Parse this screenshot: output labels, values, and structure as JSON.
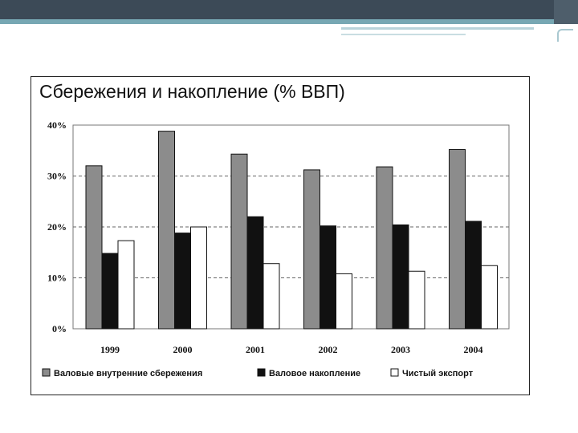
{
  "chart_data": {
    "type": "bar",
    "title": "Сбережения и накопление (% ВВП)",
    "categories": [
      "1999",
      "2000",
      "2001",
      "2002",
      "2003",
      "2004"
    ],
    "ylim": [
      0,
      40
    ],
    "yticks": [
      "0%",
      "10%",
      "20%",
      "30%",
      "40%"
    ],
    "grid": "horizontal dashed",
    "legend_position": "bottom",
    "series": [
      {
        "name": "Валовые внутренние сбережения",
        "color": "#8c8c8c",
        "values": [
          32.0,
          38.8,
          34.3,
          31.2,
          31.8,
          35.2
        ]
      },
      {
        "name": "Валовое накопление",
        "color": "#111111",
        "values": [
          14.8,
          18.8,
          22.0,
          20.2,
          20.4,
          21.1
        ]
      },
      {
        "name": "Чистый экспорт",
        "color": "#ffffff",
        "values": [
          17.3,
          20.0,
          12.8,
          10.8,
          11.3,
          12.4
        ]
      }
    ]
  }
}
